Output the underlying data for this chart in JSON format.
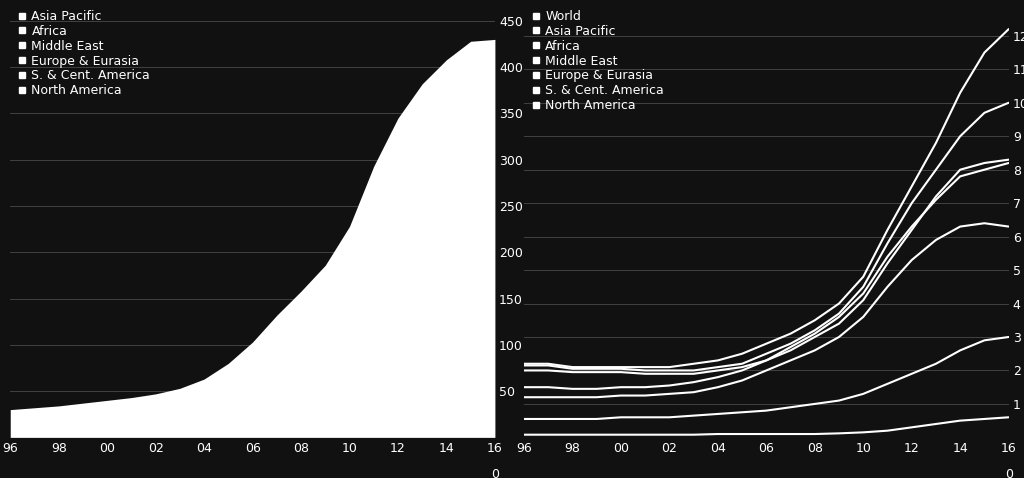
{
  "years": [
    1996,
    1997,
    1998,
    1999,
    2000,
    2001,
    2002,
    2003,
    2004,
    2005,
    2006,
    2007,
    2008,
    2009,
    2010,
    2011,
    2012,
    2013,
    2014,
    2015,
    2016
  ],
  "left_chart": {
    "yticks": [
      50,
      100,
      150,
      200,
      250,
      300,
      350,
      400,
      450
    ],
    "ylim": [
      0,
      470
    ],
    "legend": [
      "Asia Pacific",
      "Africa",
      "Middle East",
      "Europe & Eurasia",
      "S. & Cent. America",
      "North America"
    ],
    "total_data": [
      30,
      32,
      34,
      37,
      40,
      43,
      47,
      53,
      63,
      80,
      103,
      132,
      158,
      186,
      228,
      293,
      345,
      382,
      408,
      428,
      430
    ]
  },
  "right_chart": {
    "yticks": [
      1,
      2,
      3,
      4,
      5,
      6,
      7,
      8,
      9,
      10,
      11,
      12
    ],
    "ylim": [
      0,
      13.0
    ],
    "legend": [
      "World",
      "Asia Pacific",
      "Africa",
      "Middle East",
      "Europe & Eurasia",
      "S. & Cent. America",
      "North America"
    ],
    "lines": {
      "World": [
        2.2,
        2.2,
        2.1,
        2.1,
        2.1,
        2.1,
        2.1,
        2.2,
        2.3,
        2.5,
        2.8,
        3.1,
        3.5,
        4.0,
        4.8,
        6.2,
        7.5,
        8.8,
        10.3,
        11.5,
        12.2
      ],
      "Europe & Eurasia": [
        2.15,
        2.15,
        2.05,
        2.05,
        2.05,
        2.0,
        2.0,
        2.0,
        2.1,
        2.2,
        2.5,
        2.8,
        3.2,
        3.7,
        4.5,
        5.8,
        7.0,
        8.0,
        9.0,
        9.7,
        10.0
      ],
      "North America": [
        2.0,
        2.0,
        1.95,
        1.95,
        1.95,
        1.9,
        1.9,
        1.9,
        2.0,
        2.1,
        2.3,
        2.6,
        3.0,
        3.4,
        4.1,
        5.2,
        6.2,
        7.2,
        8.0,
        8.2,
        8.3
      ],
      "Asia Pacific": [
        1.5,
        1.5,
        1.45,
        1.45,
        1.5,
        1.5,
        1.55,
        1.65,
        1.8,
        2.0,
        2.3,
        2.7,
        3.1,
        3.6,
        4.3,
        5.4,
        6.3,
        7.1,
        7.8,
        8.0,
        8.2
      ],
      "S. & Cent. America": [
        1.2,
        1.2,
        1.2,
        1.2,
        1.25,
        1.25,
        1.3,
        1.35,
        1.5,
        1.7,
        2.0,
        2.3,
        2.6,
        3.0,
        3.6,
        4.5,
        5.3,
        5.9,
        6.3,
        6.4,
        6.3
      ],
      "Africa": [
        0.55,
        0.55,
        0.55,
        0.55,
        0.6,
        0.6,
        0.6,
        0.65,
        0.7,
        0.75,
        0.8,
        0.9,
        1.0,
        1.1,
        1.3,
        1.6,
        1.9,
        2.2,
        2.6,
        2.9,
        3.0
      ],
      "Middle East": [
        0.08,
        0.08,
        0.08,
        0.08,
        0.08,
        0.08,
        0.08,
        0.08,
        0.1,
        0.1,
        0.1,
        0.1,
        0.1,
        0.12,
        0.15,
        0.2,
        0.3,
        0.4,
        0.5,
        0.55,
        0.6
      ]
    },
    "line_order": [
      "World",
      "Europe & Eurasia",
      "North America",
      "Asia Pacific",
      "S. & Cent. America",
      "Africa",
      "Middle East"
    ]
  },
  "bg_color": "#111111",
  "text_color": "#ffffff",
  "line_color": "#ffffff",
  "grid_color": "#4a4a4a",
  "fill_color": "#ffffff",
  "tick_label_size": 9,
  "legend_fontsize": 9
}
